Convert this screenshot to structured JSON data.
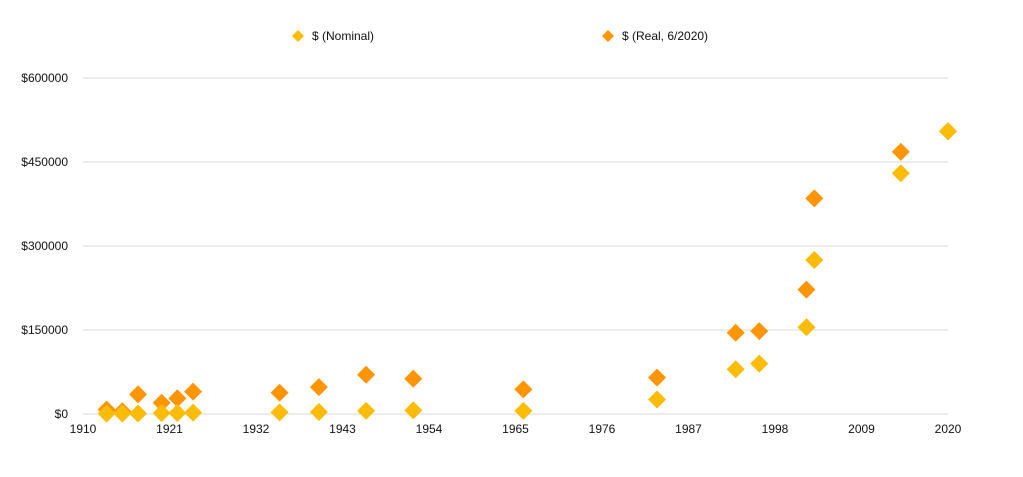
{
  "chart_data": {
    "type": "scatter",
    "title": "",
    "xlabel": "",
    "ylabel": "",
    "xlim": [
      1910,
      2020
    ],
    "ylim": [
      0,
      600000
    ],
    "grid": true,
    "legend_position": "top",
    "x_ticks": [
      "1910",
      "1921",
      "1932",
      "1943",
      "1954",
      "1965",
      "1976",
      "1987",
      "1998",
      "2009",
      "2020"
    ],
    "y_ticks": [
      "$0",
      "$150000",
      "$300000",
      "$450000",
      "$600000"
    ],
    "x": [
      1913,
      1915,
      1917,
      1920,
      1922,
      1924,
      1935,
      1940,
      1946,
      1952,
      1966,
      1983,
      1993,
      1996,
      2002,
      2003,
      2014,
      2020
    ],
    "series": [
      {
        "name": "$ (Nominal)",
        "color": "#FBBC05",
        "values": [
          700,
          800,
          1000,
          1500,
          1700,
          2500,
          3000,
          3500,
          5500,
          6500,
          5500,
          26000,
          80000,
          90000,
          155000,
          275000,
          430000,
          505000
        ]
      },
      {
        "name": "$ (Real, 6/2020)",
        "color": "#FF9500",
        "values": [
          8000,
          5000,
          35000,
          20000,
          28000,
          40000,
          38000,
          48000,
          70000,
          63000,
          44000,
          65000,
          145000,
          148000,
          222000,
          385000,
          468000,
          505000
        ]
      }
    ]
  }
}
